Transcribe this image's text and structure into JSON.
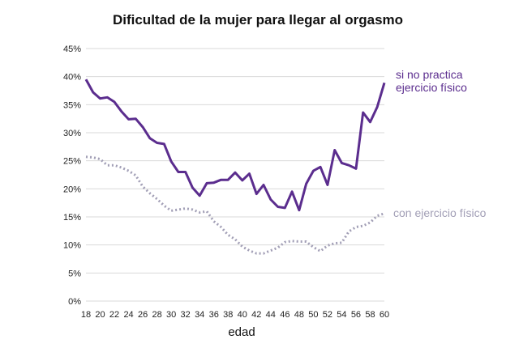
{
  "chart_data": {
    "type": "line",
    "title": "Dificultad de la mujer para llegar al orgasmo",
    "xlabel": "edad",
    "ylabel": "",
    "ylim": [
      0,
      45
    ],
    "yticks": [
      "0%",
      "5%",
      "10%",
      "15%",
      "20%",
      "25%",
      "30%",
      "35%",
      "40%",
      "45%"
    ],
    "xticks": [
      "18",
      "20",
      "22",
      "24",
      "26",
      "28",
      "30",
      "32",
      "34",
      "36",
      "38",
      "40",
      "42",
      "44",
      "46",
      "48",
      "50",
      "52",
      "54",
      "56",
      "58",
      "60"
    ],
    "x": [
      18,
      19,
      20,
      21,
      22,
      23,
      24,
      25,
      26,
      27,
      28,
      29,
      30,
      31,
      32,
      33,
      34,
      35,
      36,
      37,
      38,
      39,
      40,
      41,
      42,
      43,
      44,
      45,
      46,
      47,
      48,
      49,
      50,
      51,
      52,
      53,
      54,
      55,
      56,
      57,
      58,
      59,
      60
    ],
    "grid": "horizontal",
    "legend": "inline labels at right end of lines",
    "series": [
      {
        "name_lines": [
          "si no practica",
          "ejercicio físico"
        ],
        "color": "#5b2d8e",
        "style": "solid",
        "values": [
          39.5,
          37.2,
          36.1,
          36.3,
          35.5,
          33.8,
          32.4,
          32.5,
          31.0,
          29.0,
          28.2,
          28.0,
          24.9,
          23.0,
          23.0,
          20.2,
          18.8,
          21.0,
          21.1,
          21.6,
          21.6,
          22.9,
          21.5,
          22.7,
          19.1,
          20.7,
          18.1,
          16.8,
          16.6,
          19.5,
          16.2,
          20.9,
          23.2,
          23.9,
          20.7,
          26.9,
          24.6,
          24.2,
          23.6,
          33.6,
          31.9,
          34.6,
          38.9
        ]
      },
      {
        "name_lines": [
          "con ejercicio físico"
        ],
        "color": "#a29fb6",
        "style": "dotted",
        "values": [
          25.7,
          25.6,
          25.3,
          24.2,
          24.2,
          23.8,
          23.2,
          22.4,
          20.4,
          19.2,
          18.2,
          17.0,
          16.1,
          16.3,
          16.5,
          16.3,
          15.8,
          16.0,
          14.2,
          13.2,
          11.8,
          11.0,
          9.7,
          9.0,
          8.5,
          8.5,
          9.0,
          9.5,
          10.5,
          10.7,
          10.6,
          10.6,
          9.6,
          8.9,
          9.9,
          10.3,
          10.4,
          12.4,
          13.2,
          13.4,
          14.0,
          15.2,
          15.6
        ]
      }
    ]
  }
}
